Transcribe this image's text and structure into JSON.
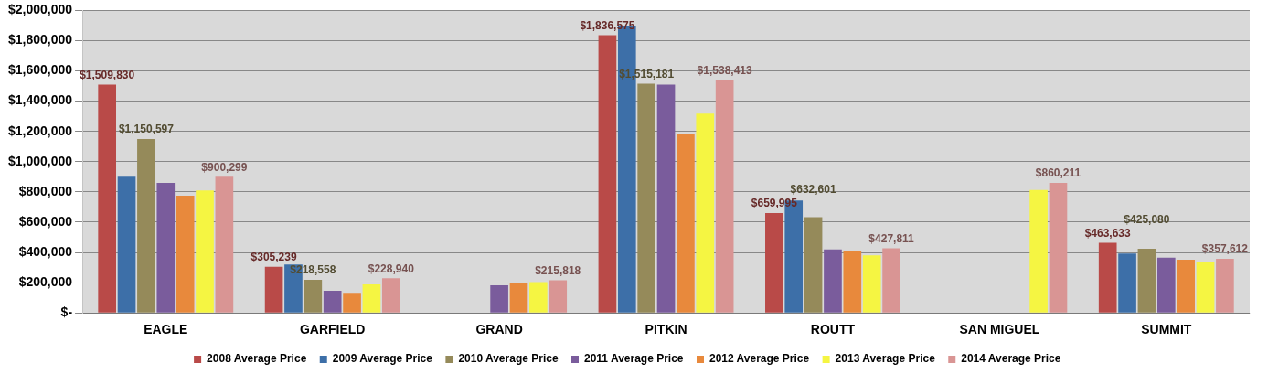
{
  "chart_data": {
    "type": "bar",
    "categories": [
      "EAGLE",
      "GARFIELD",
      "GRAND",
      "PITKIN",
      "ROUTT",
      "SAN MIGUEL",
      "SUMMIT"
    ],
    "series": [
      {
        "name": "2008 Average Price",
        "color": "#b94a48",
        "values": [
          1509830,
          305239,
          0,
          1836575,
          659995,
          0,
          463633
        ],
        "value_labels": [
          "$1,509,830",
          "$305,239",
          null,
          "$1,836,575",
          "$659,995",
          null,
          "$463,633"
        ]
      },
      {
        "name": "2009 Average Price",
        "color": "#3d6fa8",
        "values": [
          900000,
          320000,
          0,
          1900000,
          743000,
          0,
          393000
        ]
      },
      {
        "name": "2010 Average Price",
        "color": "#958a5a",
        "values": [
          1150597,
          218558,
          0,
          1515181,
          632601,
          null,
          425080
        ],
        "value_labels": [
          "$1,150,597",
          "$218,558",
          null,
          "$1,515,181",
          "$632,601",
          null,
          "$425,080"
        ]
      },
      {
        "name": "2011 Average Price",
        "color": "#7a5c9c",
        "values": [
          860000,
          146000,
          183000,
          1510000,
          420000,
          0,
          366000
        ]
      },
      {
        "name": "2012 Average Price",
        "color": "#e8893c",
        "values": [
          775000,
          132000,
          194000,
          1180000,
          408000,
          0,
          352000
        ]
      },
      {
        "name": "2013 Average Price",
        "color": "#f5f542",
        "values": [
          810000,
          188000,
          204000,
          1318000,
          380000,
          813000,
          338000
        ]
      },
      {
        "name": "2014 Average Price",
        "color": "#d99594",
        "values": [
          900299,
          228940,
          215818,
          1538413,
          427811,
          860211,
          357612
        ],
        "value_labels": [
          "$900,299",
          "$228,940",
          "$215,818",
          "$1,538,413",
          "$427,811",
          "$860,211",
          "$357,612"
        ]
      }
    ],
    "ylim": [
      0,
      2000000
    ],
    "yticks": [
      {
        "value": 0,
        "label": "$-"
      },
      {
        "value": 200000,
        "label": "$200,000"
      },
      {
        "value": 400000,
        "label": "$400,000"
      },
      {
        "value": 600000,
        "label": "$600,000"
      },
      {
        "value": 800000,
        "label": "$800,000"
      },
      {
        "value": 1000000,
        "label": "$1,000,000"
      },
      {
        "value": 1200000,
        "label": "$1,200,000"
      },
      {
        "value": 1400000,
        "label": "$1,400,000"
      },
      {
        "value": 1600000,
        "label": "$1,600,000"
      },
      {
        "value": 1800000,
        "label": "$1,800,000"
      },
      {
        "value": 2000000,
        "label": "$2,000,000"
      }
    ],
    "grid": "y",
    "legend": "bottom"
  }
}
